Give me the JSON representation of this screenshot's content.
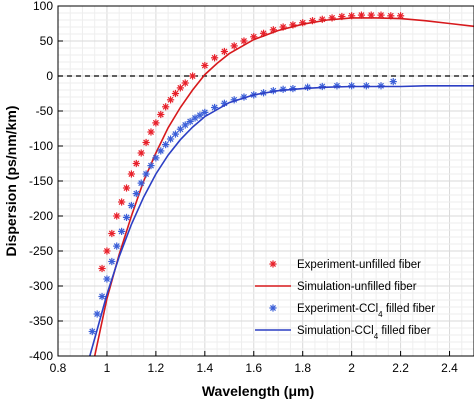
{
  "chart_data": {
    "type": "scatter",
    "xlabel": "Wavelength (μm)",
    "ylabel": "Dispersion (ps/nm/km)",
    "xlim": [
      0.8,
      2.5
    ],
    "ylim": [
      -400,
      100
    ],
    "xticks": [
      "0.8",
      "1",
      "1.2",
      "1.4",
      "1.6",
      "1.8",
      "2",
      "2.2",
      "2.4"
    ],
    "xtick_values": [
      0.8,
      1.0,
      1.2,
      1.4,
      1.6,
      1.8,
      2.0,
      2.2,
      2.4
    ],
    "yticks": [
      "100",
      "50",
      "0",
      "-50",
      "-100",
      "-150",
      "-200",
      "-250",
      "-300",
      "-350",
      "-400"
    ],
    "ytick_values": [
      100,
      50,
      0,
      -50,
      -100,
      -150,
      -200,
      -250,
      -300,
      -350,
      -400
    ],
    "grid": true,
    "zero_line": {
      "y": 0,
      "style": "dashed"
    },
    "legend_position": "bottom-right",
    "series": [
      {
        "name": "Experiment-unfilled fiber",
        "kind": "markers",
        "marker": "asterisk",
        "color": "#e8202a",
        "x": [
          0.98,
          1.0,
          1.02,
          1.04,
          1.06,
          1.08,
          1.1,
          1.12,
          1.14,
          1.16,
          1.18,
          1.2,
          1.22,
          1.24,
          1.26,
          1.28,
          1.3,
          1.32,
          1.35,
          1.4,
          1.44,
          1.48,
          1.52,
          1.56,
          1.6,
          1.64,
          1.68,
          1.72,
          1.76,
          1.8,
          1.84,
          1.88,
          1.92,
          1.96,
          2.0,
          2.04,
          2.08,
          2.12,
          2.16,
          2.2
        ],
        "y": [
          -275,
          -250,
          -225,
          -200,
          -180,
          -160,
          -140,
          -125,
          -110,
          -95,
          -80,
          -67,
          -55,
          -44,
          -34,
          -25,
          -17,
          -10,
          0,
          15,
          26,
          35,
          43,
          50,
          56,
          61,
          66,
          70,
          73,
          76,
          79,
          81,
          83,
          85,
          86,
          87,
          87,
          87,
          86,
          86
        ]
      },
      {
        "name": "Simulation-unfilled fiber",
        "kind": "line",
        "color": "#d7191c",
        "x": [
          0.95,
          1.0,
          1.05,
          1.1,
          1.15,
          1.2,
          1.25,
          1.3,
          1.35,
          1.4,
          1.45,
          1.5,
          1.6,
          1.7,
          1.8,
          1.9,
          2.0,
          2.1,
          2.2,
          2.3,
          2.4,
          2.5
        ],
        "y": [
          -400,
          -318,
          -255,
          -200,
          -150,
          -110,
          -74,
          -45,
          -20,
          2,
          18,
          32,
          52,
          65,
          74,
          80,
          83,
          83,
          82,
          79,
          75,
          71
        ]
      },
      {
        "name": "Experiment-CCl4 filled fiber",
        "name_parts": [
          "Experiment-CCl",
          "4",
          " filled fiber"
        ],
        "kind": "markers",
        "marker": "asterisk",
        "color": "#3b5fd8",
        "x": [
          0.94,
          0.96,
          0.98,
          1.0,
          1.02,
          1.04,
          1.06,
          1.08,
          1.1,
          1.12,
          1.14,
          1.16,
          1.18,
          1.2,
          1.22,
          1.24,
          1.26,
          1.28,
          1.3,
          1.32,
          1.34,
          1.36,
          1.38,
          1.4,
          1.44,
          1.48,
          1.52,
          1.56,
          1.6,
          1.64,
          1.68,
          1.72,
          1.76,
          1.82,
          1.88,
          1.94,
          2.0,
          2.06,
          2.12,
          2.17
        ],
        "y": [
          -365,
          -340,
          -315,
          -290,
          -265,
          -243,
          -222,
          -202,
          -185,
          -168,
          -153,
          -140,
          -128,
          -117,
          -107,
          -98,
          -90,
          -83,
          -76,
          -70,
          -65,
          -60,
          -56,
          -52,
          -45,
          -39,
          -34,
          -30,
          -27,
          -24,
          -21,
          -19,
          -18,
          -16,
          -15,
          -14,
          -14,
          -14,
          -14,
          -8
        ]
      },
      {
        "name": "Simulation-CCl4 filled fiber",
        "name_parts": [
          "Simulation-CCl",
          "4",
          " filled fiber"
        ],
        "kind": "line",
        "color": "#2c3fc4",
        "x": [
          0.93,
          0.95,
          1.0,
          1.05,
          1.1,
          1.15,
          1.2,
          1.25,
          1.3,
          1.35,
          1.4,
          1.5,
          1.6,
          1.7,
          1.8,
          1.9,
          2.0,
          2.1,
          2.2,
          2.3,
          2.4,
          2.5
        ],
        "y": [
          -400,
          -375,
          -312,
          -258,
          -212,
          -173,
          -140,
          -113,
          -91,
          -73,
          -58,
          -38,
          -27,
          -21,
          -18,
          -16,
          -15,
          -15,
          -15,
          -14,
          -14,
          -14
        ]
      }
    ]
  }
}
